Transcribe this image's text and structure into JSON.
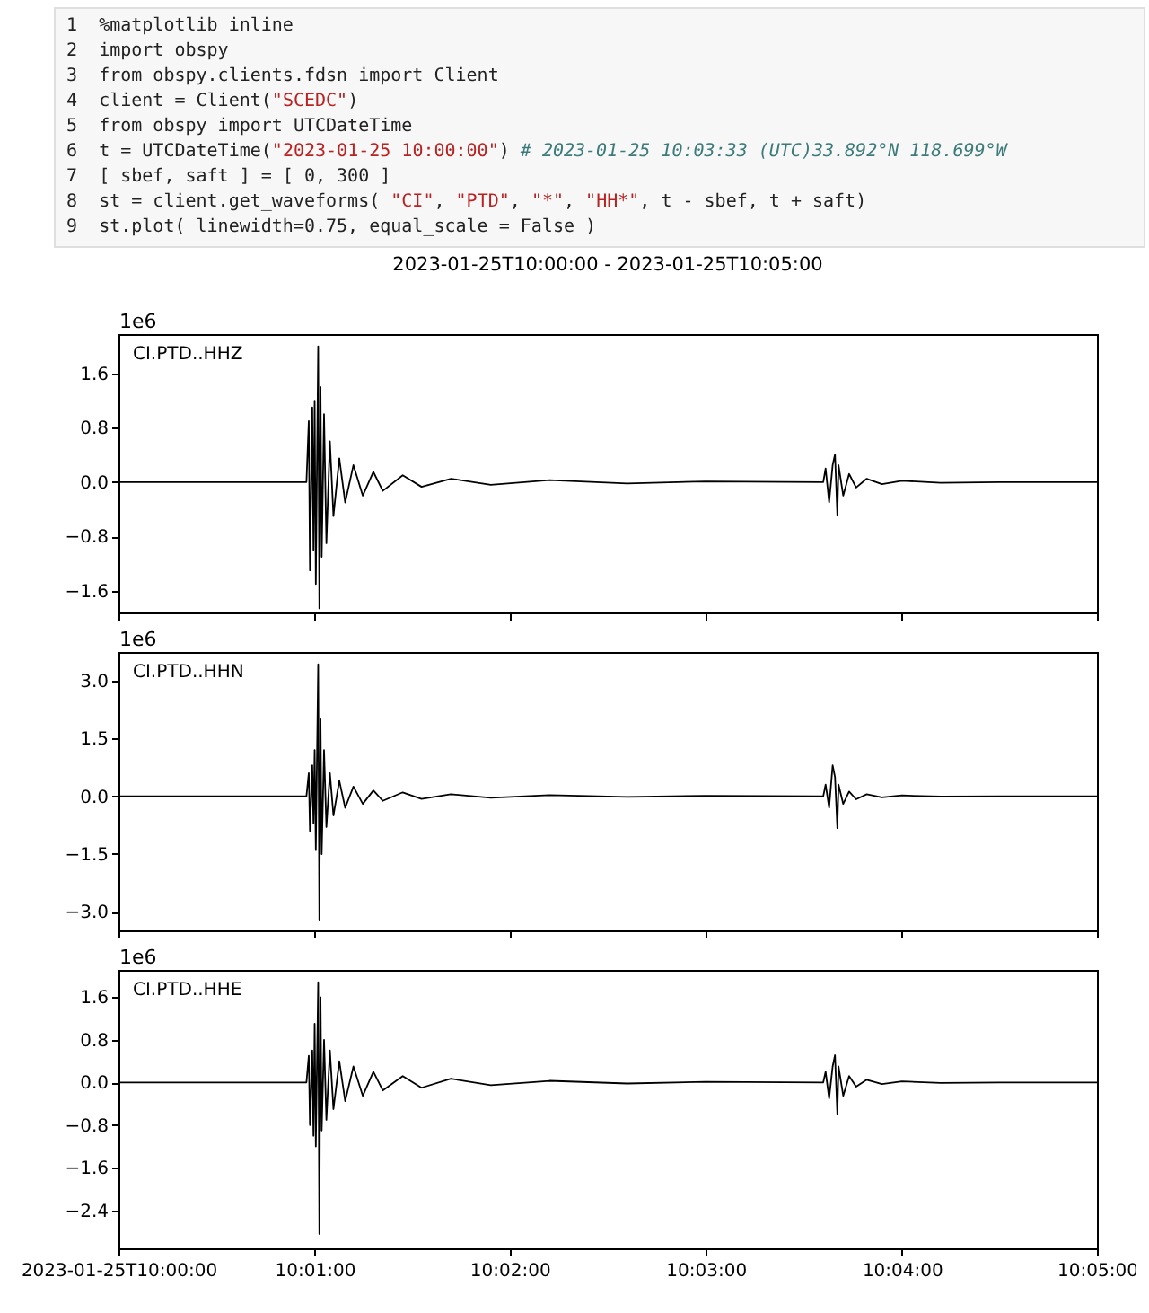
{
  "chart_data": [
    {
      "type": "other",
      "annotations": [
        "1",
        "%matplotlib inline",
        "2",
        "import obspy",
        "3",
        "from obspy.clients.fdsn import Client",
        "4",
        "client = Client(\"SCEDC\")",
        "5",
        "from obspy import UTCDateTime",
        "6",
        "t = UTCDateTime(\"2023-01-25 10:00:00\") # 2023-01-25 10:03:33 (UTC)33.892°N 118.699°W",
        "7",
        "[ sbef, saft ] = [ 0, 300 ]",
        "8",
        "st = client.get_waveforms( \"CI\", \"PTD\", \"*\", \"HH*\", t - sbef, t + saft)",
        "9",
        "st.plot( linewidth=0.75, equal_scale = False )"
      ]
    },
    {
      "type": "line",
      "title": "2023-01-25T10:00:00  -  2023-01-25T10:05:00",
      "ylabel": "1e6",
      "annotations": [
        "CI.PTD..HHZ"
      ],
      "tick_labels": "y",
      "x": [
        10,
        10.016,
        10.0162,
        10.0163,
        10.0165,
        10.0166,
        10.0167,
        10.0168,
        10.017,
        10.0171,
        10.0172,
        10.0173,
        10.0175,
        10.0177,
        10.018,
        10.0183,
        10.0188,
        10.0193,
        10.02,
        10.0208,
        10.0217,
        10.0225,
        10.0242,
        10.0258,
        10.0283,
        10.0317,
        10.0367,
        10.0433,
        10.05,
        10.06,
        10.0602,
        10.0605,
        10.0608,
        10.061,
        10.0612,
        10.0613,
        10.0617,
        10.0622,
        10.0628,
        10.0637,
        10.065,
        10.0667,
        10.07,
        10.075,
        10.0833
      ],
      "series": [
        {
          "color": "#000000",
          "values": [
            0,
            0,
            0.9,
            -1.3,
            1.1,
            -1.0,
            1.2,
            -1.5,
            2.0,
            -1.86,
            1.4,
            -1.1,
            1.0,
            -0.9,
            0.6,
            -0.5,
            0.35,
            -0.3,
            0.25,
            -0.2,
            0.15,
            -0.13,
            0.1,
            -0.07,
            0.05,
            -0.04,
            0.03,
            -0.02,
            0.01,
            0,
            0.2,
            -0.3,
            0.25,
            0.41,
            -0.49,
            0.25,
            -0.2,
            0.12,
            -0.08,
            0.05,
            -0.03,
            0.02,
            -0.01,
            0,
            0
          ]
        }
      ],
      "xlim": [
        10,
        10.0833
      ],
      "xticks": [
        {
          "value": 10,
          "label": null
        },
        {
          "value": 10.0167,
          "label": null
        },
        {
          "value": 10.0333,
          "label": null
        },
        {
          "value": 10.05,
          "label": null
        },
        {
          "value": 10.0667,
          "label": null
        },
        {
          "value": 10.0833,
          "label": null
        }
      ],
      "ylim": [
        -1.92,
        2.18
      ],
      "yticks": [
        {
          "value": -1.6,
          "label": "−1.6"
        },
        {
          "value": -0.8,
          "label": "−0.8"
        },
        {
          "value": 0,
          "label": "0.0"
        },
        0.8,
        1.6
      ]
    },
    {
      "type": "line",
      "ylabel": "1e6",
      "annotations": [
        "CI.PTD..HHN"
      ],
      "tick_labels": "y",
      "x": [
        10,
        10.016,
        10.0162,
        10.0163,
        10.0165,
        10.0166,
        10.0167,
        10.0168,
        10.017,
        10.0171,
        10.0172,
        10.0173,
        10.0175,
        10.0177,
        10.018,
        10.0183,
        10.0188,
        10.0193,
        10.02,
        10.0208,
        10.0217,
        10.0225,
        10.0242,
        10.0258,
        10.0283,
        10.0317,
        10.0367,
        10.0433,
        10.05,
        10.06,
        10.0602,
        10.0605,
        10.0608,
        10.061,
        10.0612,
        10.0613,
        10.0617,
        10.0622,
        10.0628,
        10.0637,
        10.065,
        10.0667,
        10.07,
        10.075,
        10.0833
      ],
      "series": [
        {
          "color": "#000000",
          "values": [
            0,
            0,
            0.6,
            -0.9,
            0.8,
            -0.7,
            1.2,
            -1.4,
            3.42,
            -3.2,
            2.0,
            -1.5,
            1.2,
            -0.8,
            0.6,
            -0.5,
            0.4,
            -0.3,
            0.25,
            -0.2,
            0.15,
            -0.12,
            0.1,
            -0.07,
            0.05,
            -0.04,
            0.03,
            -0.02,
            0.01,
            0,
            0.3,
            -0.3,
            0.8,
            0.5,
            -0.83,
            0.3,
            -0.2,
            0.12,
            -0.08,
            0.05,
            -0.03,
            0.02,
            -0.01,
            0,
            0
          ]
        }
      ],
      "xlim": [
        10,
        10.0833
      ],
      "xticks": [
        {
          "value": 10,
          "label": null
        },
        {
          "value": 10.0167,
          "label": null
        },
        {
          "value": 10.0333,
          "label": null
        },
        {
          "value": 10.05,
          "label": null
        },
        {
          "value": 10.0667,
          "label": null
        },
        {
          "value": 10.0833,
          "label": null
        }
      ],
      "ylim": [
        -3.48,
        3.74
      ],
      "yticks": [
        {
          "value": -3,
          "label": "−3.0"
        },
        {
          "value": -1.5,
          "label": "−1.5"
        },
        {
          "value": 0,
          "label": "0.0"
        },
        1.5,
        {
          "value": 3,
          "label": "3.0"
        }
      ]
    },
    {
      "type": "line",
      "ylabel": "1e6",
      "annotations": [
        "CI.PTD..HHE"
      ],
      "x": [
        10,
        10.016,
        10.0162,
        10.0163,
        10.0165,
        10.0166,
        10.0167,
        10.0168,
        10.017,
        10.0171,
        10.0172,
        10.0173,
        10.0175,
        10.0177,
        10.018,
        10.0183,
        10.0188,
        10.0193,
        10.02,
        10.0208,
        10.0217,
        10.0225,
        10.0242,
        10.0258,
        10.0283,
        10.0317,
        10.0367,
        10.0433,
        10.05,
        10.06,
        10.0602,
        10.0605,
        10.0608,
        10.061,
        10.0612,
        10.0613,
        10.0617,
        10.0622,
        10.0628,
        10.0637,
        10.065,
        10.0667,
        10.07,
        10.075,
        10.0833
      ],
      "series": [
        {
          "color": "#000000",
          "values": [
            0,
            0,
            0.5,
            -0.8,
            0.6,
            -1.0,
            1.1,
            -1.2,
            1.88,
            -2.84,
            1.6,
            -0.9,
            0.8,
            -0.7,
            0.6,
            -0.5,
            0.4,
            -0.35,
            0.3,
            -0.25,
            0.2,
            -0.15,
            0.12,
            -0.1,
            0.07,
            -0.05,
            0.03,
            -0.02,
            0.01,
            0,
            0.2,
            -0.3,
            0.3,
            0.51,
            -0.6,
            0.3,
            -0.25,
            0.12,
            -0.08,
            0.05,
            -0.03,
            0.02,
            -0.01,
            0,
            0
          ]
        }
      ],
      "xlim": [
        10,
        10.0833
      ],
      "xticks": [
        {
          "value": 10,
          "label": "2023-01-25T10:00:00"
        },
        {
          "value": 10.0167,
          "label": "10:01:00"
        },
        {
          "value": 10.0333,
          "label": "10:02:00"
        },
        {
          "value": 10.05,
          "label": "10:03:00"
        },
        {
          "value": 10.0667,
          "label": "10:04:00"
        },
        {
          "value": 10.0833,
          "label": "10:05:00"
        }
      ],
      "ylim": [
        -3.11,
        2.11
      ],
      "yticks": [
        {
          "value": -2.4,
          "label": "−2.4"
        },
        {
          "value": -1.6,
          "label": "−1.6"
        },
        {
          "value": -0.8,
          "label": "−0.8"
        },
        {
          "value": 0,
          "label": "0.0"
        },
        0.8,
        1.6
      ]
    }
  ]
}
